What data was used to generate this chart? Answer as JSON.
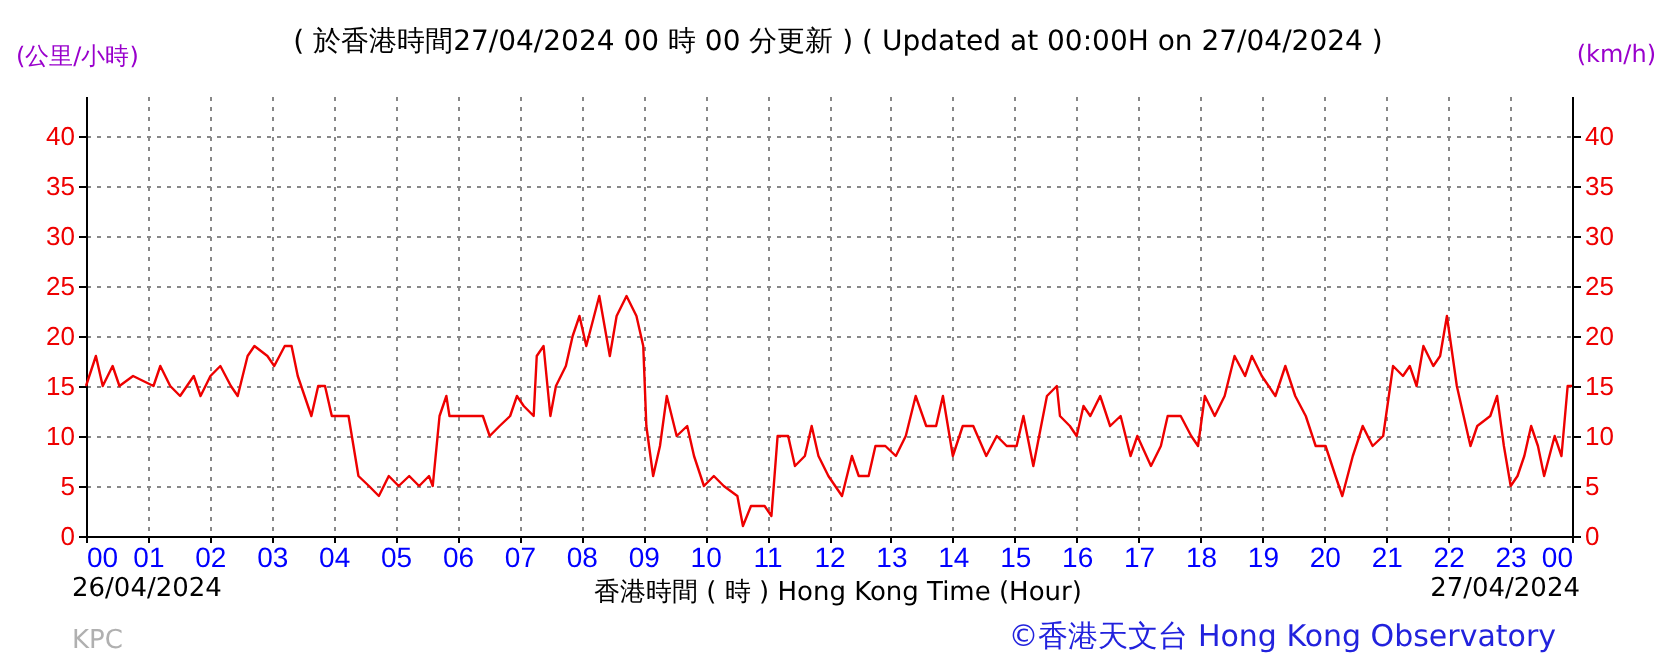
{
  "chart_data": {
    "type": "line",
    "title": "( 於香港時間27/04/2024 00 時 00 分更新 ) ( Updated at 00:00H on 27/04/2024 )",
    "ylabel": "(公里/小時)",
    "y2label": "(km/h)",
    "xlabel": "香港時間 ( 時 )  Hong Kong Time (Hour)",
    "annotations": [
      "26/04/2024",
      "27/04/2024",
      "KPC",
      "©香港天文台 Hong Kong Observatory"
    ],
    "series": [
      {
        "color": "#ee0000",
        "x": [
          0,
          0.16,
          0.27,
          0.43,
          0.54,
          0.76,
          1.09,
          1.2,
          1.36,
          1.52,
          1.74,
          1.85,
          2.01,
          2.17,
          2.34,
          2.45,
          2.61,
          2.72,
          2.93,
          3.04,
          3.21,
          3.32,
          3.42,
          3.53,
          3.64,
          3.75,
          3.86,
          3.97,
          4.24,
          4.4,
          4.57,
          4.73,
          4.89,
          5.05,
          5.22,
          5.38,
          5.54,
          5.6,
          5.71,
          5.82,
          5.87,
          6.41,
          6.52,
          6.68,
          6.85,
          6.96,
          7.07,
          7.23,
          7.28,
          7.39,
          7.5,
          7.59,
          7.75,
          7.86,
          7.97,
          8.08,
          8.29,
          8.46,
          8.57,
          8.73,
          8.89,
          9.0,
          9.05,
          9.16,
          9.27,
          9.38,
          9.54,
          9.71,
          9.82,
          9.98,
          10.14,
          10.3,
          10.52,
          10.61,
          10.74,
          10.96,
          11.07,
          11.17,
          11.34,
          11.45,
          11.61,
          11.72,
          11.83,
          11.99,
          12.21,
          12.37,
          12.48,
          12.64,
          12.75,
          12.91,
          13.08,
          13.24,
          13.4,
          13.57,
          13.73,
          13.84,
          14.0,
          14.16,
          14.33,
          14.54,
          14.71,
          14.87,
          15.03,
          15.14,
          15.3,
          15.52,
          15.68,
          15.73,
          15.89,
          16.0,
          16.11,
          16.22,
          16.38,
          16.54,
          16.71,
          16.87,
          16.98,
          17.2,
          17.36,
          17.47,
          17.68,
          17.85,
          17.96,
          18.07,
          18.23,
          18.39,
          18.55,
          18.72,
          18.83,
          18.99,
          19.21,
          19.37,
          19.53,
          19.7,
          19.86,
          20.02,
          20.18,
          20.29,
          20.46,
          20.62,
          20.78,
          20.95,
          21.11,
          21.27,
          21.38,
          21.49,
          21.6,
          21.76,
          21.87,
          21.98,
          22.14,
          22.25,
          22.36,
          22.47,
          22.68,
          22.79,
          22.9,
          23.01,
          23.12,
          23.23,
          23.34,
          23.45,
          23.55,
          23.72,
          23.83,
          23.93,
          24
        ],
        "values": [
          15,
          18,
          15,
          17,
          15,
          16,
          15,
          17,
          15,
          14,
          16,
          14,
          16,
          17,
          15,
          14,
          18,
          19,
          18,
          17,
          19,
          19,
          16,
          14,
          12,
          15,
          15,
          12,
          12,
          6,
          5,
          4,
          6,
          5,
          6,
          5,
          6,
          5,
          12,
          14,
          12,
          12,
          10,
          11,
          12,
          14,
          13,
          12,
          18,
          19,
          12,
          15,
          17,
          20,
          22,
          19,
          24,
          18,
          22,
          24,
          22,
          19,
          11,
          6,
          9,
          14,
          10,
          11,
          8,
          5,
          6,
          5,
          4,
          1,
          3,
          3,
          2,
          10,
          10,
          7,
          8,
          11,
          8,
          6,
          4,
          8,
          6,
          6,
          9,
          9,
          8,
          10,
          14,
          11,
          11,
          14,
          8,
          11,
          11,
          8,
          10,
          9,
          9,
          12,
          7,
          14,
          15,
          12,
          11,
          10,
          13,
          12,
          14,
          11,
          12,
          8,
          10,
          7,
          9,
          12,
          12,
          10,
          9,
          14,
          12,
          14,
          18,
          16,
          18,
          16,
          14,
          17,
          14,
          12,
          9,
          9,
          6,
          4,
          8,
          11,
          9,
          10,
          17,
          16,
          17,
          15,
          19,
          17,
          18,
          22,
          15,
          12,
          9,
          11,
          12,
          14,
          9,
          5,
          6,
          8,
          11,
          9,
          6,
          10,
          8,
          15,
          15
        ]
      }
    ],
    "xlim": [
      0,
      24
    ],
    "xticks": [
      {
        "value": 0,
        "label": "00"
      },
      {
        "value": 1,
        "label": "01"
      },
      {
        "value": 2,
        "label": "02"
      },
      {
        "value": 3,
        "label": "03"
      },
      {
        "value": 4,
        "label": "04"
      },
      {
        "value": 5,
        "label": "05"
      },
      {
        "value": 6,
        "label": "06"
      },
      {
        "value": 7,
        "label": "07"
      },
      {
        "value": 8,
        "label": "08"
      },
      {
        "value": 9,
        "label": "09"
      },
      {
        "value": 10,
        "label": "10"
      },
      {
        "value": 11,
        "label": "11"
      },
      {
        "value": 12,
        "label": "12"
      },
      {
        "value": 13,
        "label": "13"
      },
      {
        "value": 14,
        "label": "14"
      },
      {
        "value": 15,
        "label": "15"
      },
      {
        "value": 16,
        "label": "16"
      },
      {
        "value": 17,
        "label": "17"
      },
      {
        "value": 18,
        "label": "18"
      },
      {
        "value": 19,
        "label": "19"
      },
      {
        "value": 20,
        "label": "20"
      },
      {
        "value": 21,
        "label": "21"
      },
      {
        "value": 22,
        "label": "22"
      },
      {
        "value": 23,
        "label": "23"
      },
      {
        "value": 24,
        "label": "00"
      }
    ],
    "ylim": [
      0,
      44
    ],
    "yticks": [
      0,
      5,
      10,
      15,
      20,
      25,
      30,
      35,
      40
    ],
    "y2lim": [
      0,
      44
    ],
    "y2ticks": [
      0,
      5,
      10,
      15,
      20,
      25,
      30,
      35,
      40
    ],
    "grid": true,
    "line_style": "solid",
    "marker": "none"
  }
}
